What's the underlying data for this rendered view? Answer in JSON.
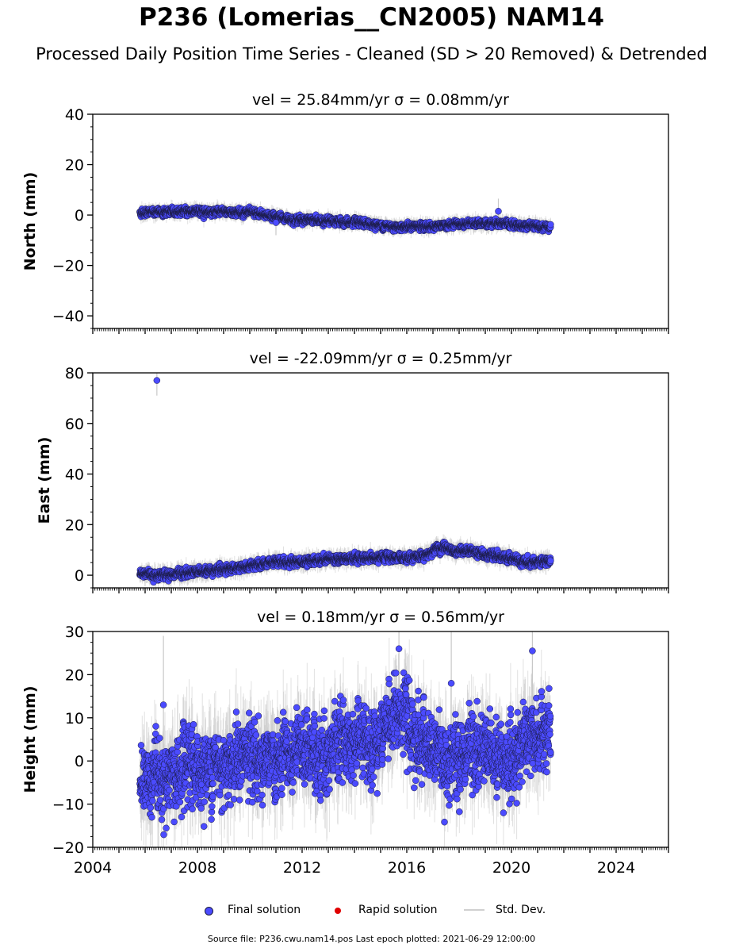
{
  "page": {
    "title": "P236 (Lomerias__CN2005) NAM14",
    "subtitle": "Processed Daily Position Time Series - Cleaned (SD > 20 Removed) & Detrended",
    "source_note": "Source file: P236.cwu.nam14.pos  Last epoch plotted: 2021-06-29 12:00:00"
  },
  "legend": {
    "final": "Final solution",
    "rapid": "Rapid solution",
    "std": "Std. Dev."
  },
  "colors": {
    "final_fill": "#4b4bff",
    "final_edge": "#1a1a40",
    "rapid": "#e00000",
    "std_dev": "#c8c8c8"
  },
  "chart_data": [
    {
      "type": "scatter",
      "title": "vel = 25.84mm/yr   σ = 0.08mm/yr",
      "ylabel": "North (mm)",
      "xlim": [
        2004,
        2026
      ],
      "ylim": [
        -45,
        40
      ],
      "yticks": [
        -40,
        -20,
        0,
        20,
        40
      ],
      "outliers": [
        [
          2011.0,
          -3.0
        ],
        [
          2019.5,
          1.5
        ]
      ],
      "series": [
        {
          "id": "final",
          "start": 2005.8,
          "end": 2021.5,
          "trend": [
            [
              2005.8,
              1.0
            ],
            [
              2008.0,
              1.5
            ],
            [
              2010.0,
              1.0
            ],
            [
              2011.5,
              -1.5
            ],
            [
              2014.0,
              -3.0
            ],
            [
              2015.5,
              -4.5
            ],
            [
              2017.0,
              -4.5
            ],
            [
              2018.5,
              -3.5
            ],
            [
              2019.5,
              -3.0
            ],
            [
              2020.0,
              -4.0
            ],
            [
              2021.5,
              -4.5
            ]
          ],
          "scatter_mm": 1.0,
          "sd_mm": 2.5
        }
      ]
    },
    {
      "type": "scatter",
      "title": "vel = -22.09mm/yr   σ = 0.25mm/yr",
      "ylabel": "East (mm)",
      "xlim": [
        2004,
        2026
      ],
      "ylim": [
        -5,
        80
      ],
      "yticks": [
        0,
        20,
        40,
        60,
        80
      ],
      "outliers": [
        [
          2006.45,
          77.0
        ]
      ],
      "series": [
        {
          "id": "final",
          "start": 2005.8,
          "end": 2021.5,
          "trend": [
            [
              2005.8,
              0.5
            ],
            [
              2007.0,
              0.0
            ],
            [
              2008.0,
              1.5
            ],
            [
              2009.0,
              2.5
            ],
            [
              2010.0,
              3.5
            ],
            [
              2011.0,
              5.0
            ],
            [
              2012.0,
              5.5
            ],
            [
              2013.0,
              6.5
            ],
            [
              2014.0,
              6.5
            ],
            [
              2015.0,
              7.0
            ],
            [
              2016.0,
              7.0
            ],
            [
              2016.8,
              8.0
            ],
            [
              2017.2,
              11.0
            ],
            [
              2018.0,
              9.5
            ],
            [
              2019.0,
              8.5
            ],
            [
              2019.5,
              7.5
            ],
            [
              2020.0,
              6.5
            ],
            [
              2020.5,
              5.0
            ],
            [
              2021.5,
              5.5
            ]
          ],
          "scatter_mm": 1.2,
          "sd_mm": 3.0
        }
      ]
    },
    {
      "type": "scatter",
      "title": "vel = 0.18mm/yr   σ = 0.56mm/yr",
      "ylabel": "Height (mm)",
      "xlabel": "",
      "xlim": [
        2004,
        2026
      ],
      "ylim": [
        -20,
        30
      ],
      "yticks": [
        -20,
        -10,
        0,
        10,
        20,
        30
      ],
      "xticks": [
        2004,
        2008,
        2012,
        2016,
        2020,
        2024
      ],
      "outliers": [
        [
          2015.7,
          26.0
        ],
        [
          2020.8,
          25.5
        ],
        [
          2006.7,
          13.0
        ],
        [
          2017.7,
          18.0
        ]
      ],
      "series": [
        {
          "id": "final",
          "start": 2005.8,
          "end": 2021.5,
          "trend": [
            [
              2005.8,
              -3.0
            ],
            [
              2007.0,
              -4.0
            ],
            [
              2008.0,
              -2.0
            ],
            [
              2009.0,
              0.0
            ],
            [
              2010.0,
              1.0
            ],
            [
              2011.0,
              -1.0
            ],
            [
              2012.0,
              2.0
            ],
            [
              2013.0,
              2.0
            ],
            [
              2014.0,
              5.0
            ],
            [
              2015.0,
              5.0
            ],
            [
              2015.7,
              12.0
            ],
            [
              2016.5,
              4.0
            ],
            [
              2017.0,
              2.0
            ],
            [
              2018.0,
              0.0
            ],
            [
              2019.0,
              3.0
            ],
            [
              2020.0,
              0.0
            ],
            [
              2020.5,
              6.0
            ],
            [
              2021.5,
              5.0
            ]
          ],
          "scatter_mm": 6.0,
          "sd_mm": 8.0
        }
      ]
    }
  ]
}
